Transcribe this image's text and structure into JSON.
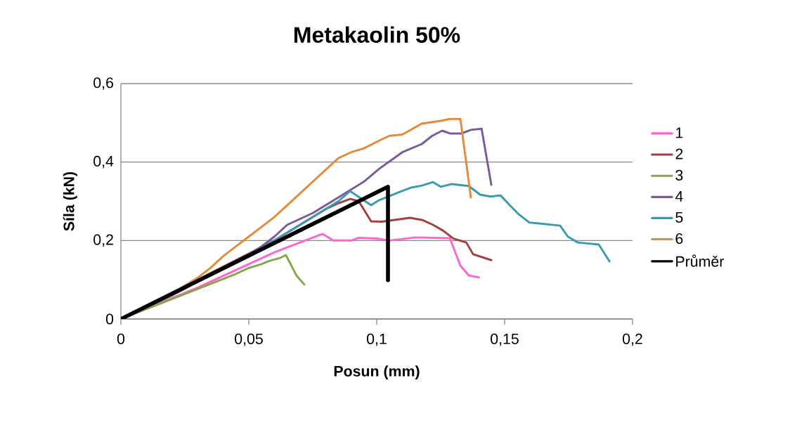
{
  "chart_data": {
    "type": "line",
    "title": "Metakaolin 50%",
    "xlabel": "Posun (mm)",
    "ylabel": "Síla (kN)",
    "xlim": [
      0,
      0.2
    ],
    "ylim": [
      0,
      0.6
    ],
    "xticks": [
      0,
      {
        "value": 0.05,
        "label": "0,05"
      },
      {
        "value": 0.1,
        "label": "0,1"
      },
      {
        "value": 0.15,
        "label": "0,15"
      },
      {
        "value": 0.2,
        "label": "0,2"
      }
    ],
    "yticks": [
      0,
      {
        "value": 0.2,
        "label": "0,2"
      },
      {
        "value": 0.4,
        "label": "0,4"
      },
      {
        "value": 0.6,
        "label": "0,6"
      }
    ],
    "grid": "y",
    "legend": "right",
    "marker": "none",
    "series": [
      {
        "name": "1",
        "color": "#ff66cc",
        "x": [
          0,
          0.03,
          0.06,
          0.0788,
          0.083,
          0.09,
          0.093,
          0.1,
          0.105,
          0.115,
          0.1286,
          0.1327,
          0.136,
          0.14
        ],
        "values": [
          0,
          0.08,
          0.17,
          0.217,
          0.2,
          0.2,
          0.207,
          0.205,
          0.2,
          0.208,
          0.206,
          0.136,
          0.111,
          0.106
        ]
      },
      {
        "name": "2",
        "color": "#a0403c",
        "x": [
          0,
          0.06,
          0.08,
          0.085,
          0.0896,
          0.093,
          0.0978,
          0.102,
          0.113,
          0.118,
          0.122,
          0.126,
          0.13,
          0.135,
          0.1377,
          0.1448
        ],
        "values": [
          0,
          0.2,
          0.28,
          0.295,
          0.306,
          0.3,
          0.249,
          0.248,
          0.258,
          0.252,
          0.24,
          0.225,
          0.205,
          0.195,
          0.165,
          0.15
        ]
      },
      {
        "name": "3",
        "color": "#86a64a",
        "x": [
          0,
          0.045,
          0.05,
          0.055,
          0.058,
          0.062,
          0.0645,
          0.0687,
          0.0717
        ],
        "values": [
          0,
          0.115,
          0.13,
          0.14,
          0.148,
          0.155,
          0.163,
          0.11,
          0.088
        ]
      },
      {
        "name": "4",
        "color": "#7a5a9b",
        "x": [
          0,
          0.02,
          0.04,
          0.05,
          0.055,
          0.06,
          0.065,
          0.075,
          0.08,
          0.085,
          0.09,
          0.095,
          0.101,
          0.11,
          0.1176,
          0.1217,
          0.1256,
          0.1286,
          0.1332,
          0.1368,
          0.141,
          0.1448
        ],
        "values": [
          0,
          0.06,
          0.13,
          0.165,
          0.185,
          0.21,
          0.24,
          0.27,
          0.29,
          0.31,
          0.33,
          0.35,
          0.383,
          0.425,
          0.446,
          0.467,
          0.48,
          0.473,
          0.473,
          0.482,
          0.485,
          0.342
        ]
      },
      {
        "name": "5",
        "color": "#3a9ab0",
        "x": [
          0,
          0.05,
          0.06,
          0.07,
          0.08,
          0.085,
          0.0896,
          0.0978,
          0.101,
          0.109,
          0.1135,
          0.1176,
          0.122,
          0.125,
          0.1294,
          0.136,
          0.1404,
          0.1445,
          0.1484,
          0.152,
          0.1555,
          0.1596,
          0.1717,
          0.1747,
          0.1786,
          0.1868,
          0.191
        ],
        "values": [
          0,
          0.16,
          0.2,
          0.24,
          0.28,
          0.3,
          0.326,
          0.29,
          0.303,
          0.324,
          0.335,
          0.34,
          0.349,
          0.337,
          0.344,
          0.339,
          0.317,
          0.312,
          0.315,
          0.29,
          0.267,
          0.246,
          0.238,
          0.21,
          0.195,
          0.19,
          0.147
        ]
      },
      {
        "name": "6",
        "color": "#e58a3a",
        "x": [
          0,
          0.01,
          0.02,
          0.03,
          0.035,
          0.04,
          0.045,
          0.05,
          0.055,
          0.06,
          0.065,
          0.07,
          0.075,
          0.08,
          0.085,
          0.09,
          0.095,
          0.101,
          0.105,
          0.11,
          0.1176,
          0.125,
          0.1286,
          0.1327,
          0.1368
        ],
        "values": [
          0,
          0.03,
          0.065,
          0.105,
          0.13,
          0.16,
          0.185,
          0.21,
          0.235,
          0.26,
          0.29,
          0.32,
          0.35,
          0.38,
          0.41,
          0.425,
          0.435,
          0.455,
          0.467,
          0.47,
          0.498,
          0.505,
          0.51,
          0.51,
          0.31
        ]
      },
      {
        "name": "Průměr",
        "color": "#000000",
        "x": [
          0,
          0.1044,
          0.1044
        ],
        "values": [
          0,
          0.337,
          0.099
        ]
      }
    ]
  }
}
